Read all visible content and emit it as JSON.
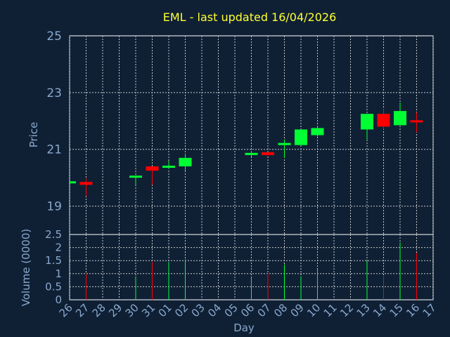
{
  "chart_data": {
    "type": "candlestick",
    "title": "EML - last updated 16/04/2026",
    "ylabel": "Price",
    "vol_ylabel": "Volume (0000)",
    "xlabel": "Day",
    "ylim": [
      18,
      25
    ],
    "yticks": [
      "19",
      "21",
      "23",
      "25"
    ],
    "vol_ylim": [
      0,
      2.5
    ],
    "vol_yticks": [
      "0",
      "0.5",
      "1",
      "1.5",
      "2",
      "2.5"
    ],
    "days": [
      "26",
      "27",
      "28",
      "29",
      "30",
      "31",
      "01",
      "02",
      "03",
      "04",
      "05",
      "06",
      "07",
      "08",
      "09",
      "10",
      "11",
      "12",
      "13",
      "14",
      "15",
      "16",
      "17"
    ],
    "candles": [
      {
        "day": "26",
        "open": 19.85,
        "close": 19.85,
        "high": 19.85,
        "low": 19.85,
        "vol": 0
      },
      {
        "day": "27",
        "open": 19.85,
        "close": 19.75,
        "high": 19.98,
        "low": 19.35,
        "vol": 1.0
      },
      {
        "day": "30",
        "open": 20.05,
        "close": 20.05,
        "high": 20.05,
        "low": 19.75,
        "vol": 0.9
      },
      {
        "day": "31",
        "open": 20.4,
        "close": 20.25,
        "high": 20.4,
        "low": 19.75,
        "vol": 1.45
      },
      {
        "day": "01",
        "open": 20.35,
        "close": 20.4,
        "high": 20.6,
        "low": 20.3,
        "vol": 1.45
      },
      {
        "day": "02",
        "open": 20.4,
        "close": 20.7,
        "high": 20.85,
        "low": 20.25,
        "vol": 1.55
      },
      {
        "day": "06",
        "open": 20.85,
        "close": 20.85,
        "high": 20.95,
        "low": 20.75,
        "vol": 0.85
      },
      {
        "day": "07",
        "open": 20.9,
        "close": 20.8,
        "high": 20.9,
        "low": 20.75,
        "vol": 1.0
      },
      {
        "day": "08",
        "open": 21.2,
        "close": 21.2,
        "high": 21.35,
        "low": 20.7,
        "vol": 1.35
      },
      {
        "day": "09",
        "open": 21.15,
        "close": 21.7,
        "high": 21.7,
        "low": 21.15,
        "vol": 0.9
      },
      {
        "day": "10",
        "open": 21.5,
        "close": 21.75,
        "high": 21.8,
        "low": 21.45,
        "vol": 1.15
      },
      {
        "day": "13",
        "open": 21.7,
        "close": 22.25,
        "high": 22.25,
        "low": 21.35,
        "vol": 1.5
      },
      {
        "day": "14",
        "open": 22.25,
        "close": 21.8,
        "high": 22.45,
        "low": 21.7,
        "vol": 0.9
      },
      {
        "day": "15",
        "open": 21.85,
        "close": 22.35,
        "high": 22.65,
        "low": 21.85,
        "vol": 2.2
      },
      {
        "day": "16",
        "open": 22.0,
        "close": 21.95,
        "high": 22.3,
        "low": 21.6,
        "vol": 1.8
      }
    ],
    "colors": {
      "background": "#0f2035",
      "title": "#ffff33",
      "text": "#8aa8cc",
      "up": "#00ff33",
      "down": "#ff0000",
      "grid": "#c8c8c8"
    },
    "grid": true
  }
}
